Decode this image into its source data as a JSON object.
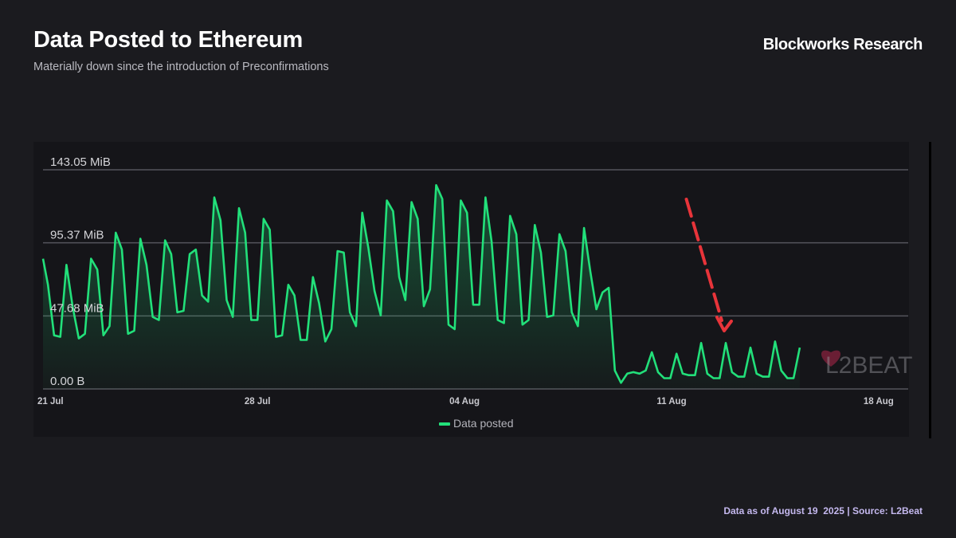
{
  "header": {
    "title": "Data Posted to Ethereum",
    "subtitle": "Materially down since the introduction of Preconfirmations",
    "brand": "Blockworks Research"
  },
  "footer": {
    "note": "Data as of August 19  2025 | Source: L2Beat"
  },
  "watermark": {
    "text": "L2BEAT",
    "icon": "heart-icon"
  },
  "colors": {
    "line": "#22e07a",
    "arrow": "#e8343a",
    "grid": "#55555c",
    "background": "#1b1b1f",
    "panel": "#151519"
  },
  "chart_data": {
    "type": "area",
    "y_unit": "MiB",
    "ylim": [
      0,
      143.05
    ],
    "y_ticks": [
      {
        "value": 143.05,
        "label": "143.05 MiB"
      },
      {
        "value": 95.37,
        "label": "95.37 MiB"
      },
      {
        "value": 47.68,
        "label": "47.68 MiB"
      },
      {
        "value": 0,
        "label": "0.00 B"
      }
    ],
    "x_ticks": [
      {
        "date": "2025-07-21",
        "label": "21 Jul"
      },
      {
        "date": "2025-07-28",
        "label": "28 Jul"
      },
      {
        "date": "2025-08-04",
        "label": "04 Aug"
      },
      {
        "date": "2025-08-11",
        "label": "11 Aug"
      },
      {
        "date": "2025-08-18",
        "label": "18 Aug"
      }
    ],
    "x_range": [
      "2025-07-20T18:00",
      "2025-08-19T00:00"
    ],
    "legend": {
      "position": "bottom-center"
    },
    "grid": true,
    "annotation": {
      "type": "arrow",
      "description": "downward trend arrow",
      "from_date": "2025-08-11T12:00",
      "to_date": "2025-08-12T18:00"
    },
    "series": [
      {
        "name": "Data posted",
        "points": [
          [
            "2025-07-20T18:00",
            85
          ],
          [
            "2025-07-20T22:00",
            68
          ],
          [
            "2025-07-21T03:00",
            35
          ],
          [
            "2025-07-21T08:00",
            34
          ],
          [
            "2025-07-21T13:00",
            81
          ],
          [
            "2025-07-21T18:00",
            54
          ],
          [
            "2025-07-21T23:00",
            33
          ],
          [
            "2025-07-22T04:00",
            36
          ],
          [
            "2025-07-22T09:00",
            85
          ],
          [
            "2025-07-22T14:00",
            78
          ],
          [
            "2025-07-22T19:00",
            35
          ],
          [
            "2025-07-23T00:00",
            41
          ],
          [
            "2025-07-23T05:00",
            102
          ],
          [
            "2025-07-23T10:00",
            91
          ],
          [
            "2025-07-23T15:00",
            36
          ],
          [
            "2025-07-23T20:00",
            38
          ],
          [
            "2025-07-24T01:00",
            98
          ],
          [
            "2025-07-24T06:00",
            81
          ],
          [
            "2025-07-24T11:00",
            47
          ],
          [
            "2025-07-24T16:00",
            45
          ],
          [
            "2025-07-24T21:00",
            97
          ],
          [
            "2025-07-25T02:00",
            88
          ],
          [
            "2025-07-25T07:00",
            50
          ],
          [
            "2025-07-25T12:00",
            51
          ],
          [
            "2025-07-25T17:00",
            88
          ],
          [
            "2025-07-25T22:00",
            91
          ],
          [
            "2025-07-26T03:00",
            61
          ],
          [
            "2025-07-26T08:00",
            57
          ],
          [
            "2025-07-26T13:00",
            125
          ],
          [
            "2025-07-26T18:00",
            110
          ],
          [
            "2025-07-26T23:00",
            58
          ],
          [
            "2025-07-27T04:00",
            47
          ],
          [
            "2025-07-27T09:00",
            118
          ],
          [
            "2025-07-27T14:00",
            102
          ],
          [
            "2025-07-27T19:00",
            45
          ],
          [
            "2025-07-28T00:00",
            45
          ],
          [
            "2025-07-28T05:00",
            111
          ],
          [
            "2025-07-28T10:00",
            104
          ],
          [
            "2025-07-28T15:00",
            34
          ],
          [
            "2025-07-28T20:00",
            35
          ],
          [
            "2025-07-29T01:00",
            68
          ],
          [
            "2025-07-29T06:00",
            61
          ],
          [
            "2025-07-29T11:00",
            32
          ],
          [
            "2025-07-29T16:00",
            32
          ],
          [
            "2025-07-29T21:00",
            73
          ],
          [
            "2025-07-30T02:00",
            56
          ],
          [
            "2025-07-30T07:00",
            31
          ],
          [
            "2025-07-30T12:00",
            39
          ],
          [
            "2025-07-30T17:00",
            90
          ],
          [
            "2025-07-30T22:00",
            89
          ],
          [
            "2025-07-31T03:00",
            50
          ],
          [
            "2025-07-31T08:00",
            41
          ],
          [
            "2025-07-31T13:00",
            115
          ],
          [
            "2025-07-31T18:00",
            92
          ],
          [
            "2025-07-31T23:00",
            64
          ],
          [
            "2025-08-01T04:00",
            48
          ],
          [
            "2025-08-01T09:00",
            123
          ],
          [
            "2025-08-01T14:00",
            116
          ],
          [
            "2025-08-01T19:00",
            73
          ],
          [
            "2025-08-02T00:00",
            58
          ],
          [
            "2025-08-02T05:00",
            122
          ],
          [
            "2025-08-02T10:00",
            111
          ],
          [
            "2025-08-02T15:00",
            54
          ],
          [
            "2025-08-02T20:00",
            65
          ],
          [
            "2025-08-03T01:00",
            133
          ],
          [
            "2025-08-03T06:00",
            124
          ],
          [
            "2025-08-03T11:00",
            42
          ],
          [
            "2025-08-03T16:00",
            39
          ],
          [
            "2025-08-03T21:00",
            123
          ],
          [
            "2025-08-04T02:00",
            115
          ],
          [
            "2025-08-04T07:00",
            55
          ],
          [
            "2025-08-04T12:00",
            55
          ],
          [
            "2025-08-04T17:00",
            125
          ],
          [
            "2025-08-04T22:00",
            96
          ],
          [
            "2025-08-05T03:00",
            45
          ],
          [
            "2025-08-05T08:00",
            43
          ],
          [
            "2025-08-05T13:00",
            113
          ],
          [
            "2025-08-05T18:00",
            101
          ],
          [
            "2025-08-05T23:00",
            42
          ],
          [
            "2025-08-06T04:00",
            45
          ],
          [
            "2025-08-06T09:00",
            107
          ],
          [
            "2025-08-06T14:00",
            89
          ],
          [
            "2025-08-06T19:00",
            47
          ],
          [
            "2025-08-07T00:00",
            48
          ],
          [
            "2025-08-07T05:00",
            101
          ],
          [
            "2025-08-07T10:00",
            90
          ],
          [
            "2025-08-07T15:00",
            50
          ],
          [
            "2025-08-07T20:00",
            41
          ],
          [
            "2025-08-08T01:00",
            105
          ],
          [
            "2025-08-08T06:00",
            77
          ],
          [
            "2025-08-08T11:00",
            52
          ],
          [
            "2025-08-08T16:00",
            63
          ],
          [
            "2025-08-08T21:00",
            66
          ],
          [
            "2025-08-09T02:00",
            12
          ],
          [
            "2025-08-09T07:00",
            4
          ],
          [
            "2025-08-09T12:00",
            10
          ],
          [
            "2025-08-09T17:00",
            11
          ],
          [
            "2025-08-09T22:00",
            10
          ],
          [
            "2025-08-10T03:00",
            12
          ],
          [
            "2025-08-10T08:00",
            24
          ],
          [
            "2025-08-10T13:00",
            11
          ],
          [
            "2025-08-10T18:00",
            7
          ],
          [
            "2025-08-10T23:00",
            7
          ],
          [
            "2025-08-11T04:00",
            23
          ],
          [
            "2025-08-11T09:00",
            10
          ],
          [
            "2025-08-11T14:00",
            9
          ],
          [
            "2025-08-11T19:00",
            9
          ],
          [
            "2025-08-12T00:00",
            30
          ],
          [
            "2025-08-12T05:00",
            10
          ],
          [
            "2025-08-12T10:00",
            7
          ],
          [
            "2025-08-12T15:00",
            7
          ],
          [
            "2025-08-12T20:00",
            30
          ],
          [
            "2025-08-13T01:00",
            11
          ],
          [
            "2025-08-13T06:00",
            8
          ],
          [
            "2025-08-13T11:00",
            8
          ],
          [
            "2025-08-13T16:00",
            27
          ],
          [
            "2025-08-13T21:00",
            10
          ],
          [
            "2025-08-14T02:00",
            8
          ],
          [
            "2025-08-14T07:00",
            8
          ],
          [
            "2025-08-14T12:00",
            31
          ],
          [
            "2025-08-14T17:00",
            12
          ],
          [
            "2025-08-14T22:00",
            7
          ],
          [
            "2025-08-15T03:00",
            7
          ],
          [
            "2025-08-15T08:00",
            27
          ]
        ]
      }
    ]
  }
}
